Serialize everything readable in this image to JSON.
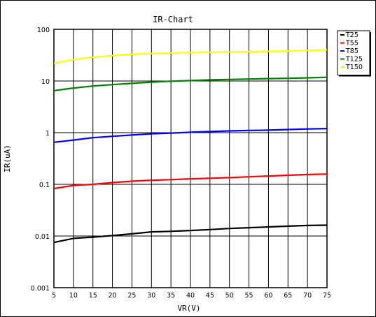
{
  "chart_data": {
    "type": "line",
    "title": "IR-Chart",
    "xlabel": "VR(V)",
    "ylabel": "IR(uA)",
    "x_scale": "linear",
    "y_scale": "log",
    "xlim": [
      5,
      75
    ],
    "ylim": [
      0.001,
      100
    ],
    "grid": true,
    "legend_position": "top-right",
    "x_ticks": [
      "5",
      "10",
      "15",
      "20",
      "25",
      "30",
      "35",
      "40",
      "45",
      "50",
      "55",
      "60",
      "65",
      "70",
      "75"
    ],
    "y_ticks": [
      "0.001",
      "0.01",
      "0.1",
      "1",
      "10",
      "100"
    ],
    "x": [
      5,
      10,
      15,
      20,
      25,
      30,
      35,
      40,
      45,
      50,
      55,
      60,
      65,
      70,
      75
    ],
    "series": [
      {
        "name": "T25",
        "color": "#000000",
        "values": [
          0.0075,
          0.009,
          0.0095,
          0.0102,
          0.011,
          0.012,
          0.0123,
          0.0128,
          0.0133,
          0.014,
          0.0145,
          0.015,
          0.0155,
          0.016,
          0.0162
        ]
      },
      {
        "name": "T55",
        "color": "#ff0000",
        "values": [
          0.083,
          0.095,
          0.1,
          0.108,
          0.115,
          0.12,
          0.123,
          0.128,
          0.131,
          0.135,
          0.14,
          0.145,
          0.15,
          0.155,
          0.158
        ]
      },
      {
        "name": "T85",
        "color": "#0000ff",
        "values": [
          0.65,
          0.72,
          0.8,
          0.85,
          0.9,
          0.95,
          0.98,
          1.02,
          1.05,
          1.08,
          1.1,
          1.12,
          1.15,
          1.18,
          1.2
        ]
      },
      {
        "name": "T125",
        "color": "#008000",
        "values": [
          6.5,
          7.3,
          8.0,
          8.5,
          9.0,
          9.5,
          9.9,
          10.2,
          10.5,
          10.7,
          10.9,
          11.1,
          11.3,
          11.5,
          11.8
        ]
      },
      {
        "name": "T150",
        "color": "#ffff00",
        "values": [
          22,
          26,
          29,
          31,
          33,
          34,
          35,
          35.5,
          36,
          36.5,
          37,
          37.5,
          38,
          39,
          40
        ]
      }
    ]
  }
}
